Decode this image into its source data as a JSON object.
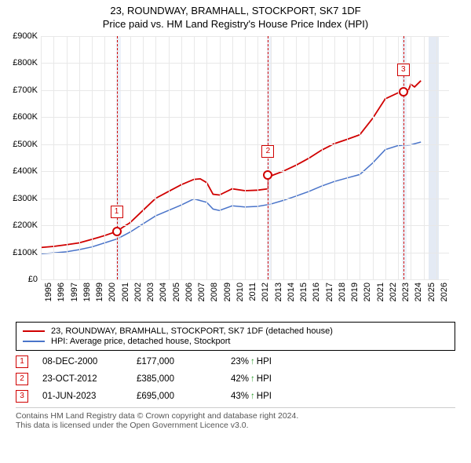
{
  "title": {
    "line1": "23, ROUNDWAY, BRAMHALL, STOCKPORT, SK7 1DF",
    "line2": "Price paid vs. HM Land Registry's House Price Index (HPI)"
  },
  "chart": {
    "xlim": [
      1995,
      2027
    ],
    "ylim": [
      0,
      900000
    ],
    "ytick_step": 100000,
    "y_ticks": [
      "£0",
      "£100K",
      "£200K",
      "£300K",
      "£400K",
      "£500K",
      "£600K",
      "£700K",
      "£800K",
      "£900K"
    ],
    "x_ticks": [
      1995,
      1996,
      1997,
      1998,
      1999,
      2000,
      2001,
      2002,
      2003,
      2004,
      2005,
      2006,
      2007,
      2008,
      2009,
      2010,
      2011,
      2012,
      2013,
      2014,
      2015,
      2016,
      2017,
      2018,
      2019,
      2020,
      2021,
      2022,
      2023,
      2024,
      2025,
      2026
    ],
    "colors": {
      "series_property": "#d00000",
      "series_hpi": "#4a74c9",
      "band_fill": "#dbe6f7",
      "band_fill_last": "#c9d6ea",
      "grid": "#e8e8e8",
      "background": "#ffffff"
    },
    "bands": [
      {
        "start": 2000.9,
        "end": 2001.3
      },
      {
        "start": 2012.7,
        "end": 2013.1
      },
      {
        "start": 2023.3,
        "end": 2023.7
      },
      {
        "start": 2025.4,
        "end": 2026.2
      }
    ],
    "series_hpi": [
      [
        1995,
        95000
      ],
      [
        1996,
        98000
      ],
      [
        1997,
        102000
      ],
      [
        1998,
        110000
      ],
      [
        1999,
        120000
      ],
      [
        2000,
        135000
      ],
      [
        2001,
        150000
      ],
      [
        2002,
        175000
      ],
      [
        2003,
        205000
      ],
      [
        2004,
        235000
      ],
      [
        2005,
        255000
      ],
      [
        2006,
        275000
      ],
      [
        2007,
        298000
      ],
      [
        2008,
        285000
      ],
      [
        2008.5,
        260000
      ],
      [
        2009,
        255000
      ],
      [
        2010,
        272000
      ],
      [
        2011,
        268000
      ],
      [
        2012,
        270000
      ],
      [
        2013,
        278000
      ],
      [
        2014,
        292000
      ],
      [
        2015,
        308000
      ],
      [
        2016,
        325000
      ],
      [
        2017,
        345000
      ],
      [
        2018,
        362000
      ],
      [
        2019,
        375000
      ],
      [
        2020,
        388000
      ],
      [
        2021,
        430000
      ],
      [
        2022,
        480000
      ],
      [
        2023,
        495000
      ],
      [
        2024,
        498000
      ],
      [
        2024.8,
        508000
      ]
    ],
    "series_property": [
      [
        1995,
        118000
      ],
      [
        1996,
        122000
      ],
      [
        1997,
        128000
      ],
      [
        1998,
        135000
      ],
      [
        1999,
        148000
      ],
      [
        2000,
        162000
      ],
      [
        2000.94,
        177000
      ],
      [
        2001,
        180000
      ],
      [
        2002,
        210000
      ],
      [
        2003,
        255000
      ],
      [
        2004,
        300000
      ],
      [
        2005,
        325000
      ],
      [
        2006,
        350000
      ],
      [
        2007,
        370000
      ],
      [
        2007.5,
        372000
      ],
      [
        2008,
        358000
      ],
      [
        2008.5,
        315000
      ],
      [
        2009,
        312000
      ],
      [
        2010,
        335000
      ],
      [
        2011,
        328000
      ],
      [
        2012,
        330000
      ],
      [
        2012.81,
        335000
      ],
      [
        2012.82,
        385000
      ],
      [
        2013,
        382000
      ],
      [
        2014,
        400000
      ],
      [
        2015,
        422000
      ],
      [
        2016,
        448000
      ],
      [
        2017,
        478000
      ],
      [
        2018,
        502000
      ],
      [
        2019,
        518000
      ],
      [
        2020,
        535000
      ],
      [
        2021,
        595000
      ],
      [
        2022,
        668000
      ],
      [
        2023,
        690000
      ],
      [
        2023.42,
        695000
      ],
      [
        2023.8,
        698000
      ],
      [
        2024,
        722000
      ],
      [
        2024.3,
        712000
      ],
      [
        2024.8,
        735000
      ]
    ],
    "event_markers": [
      {
        "n": "1",
        "x": 2000.94,
        "y": 177000,
        "box_y": 250000
      },
      {
        "n": "2",
        "x": 2012.81,
        "y": 385000,
        "box_y": 472000
      },
      {
        "n": "3",
        "x": 2023.42,
        "y": 695000,
        "box_y": 775000
      }
    ]
  },
  "legend": {
    "items": [
      {
        "color": "#d00000",
        "label": "23, ROUNDWAY, BRAMHALL, STOCKPORT, SK7 1DF (detached house)"
      },
      {
        "color": "#4a74c9",
        "label": "HPI: Average price, detached house, Stockport"
      }
    ]
  },
  "events": [
    {
      "n": "1",
      "date": "08-DEC-2000",
      "price": "£177,000",
      "pct": "23%",
      "arrow": "↑",
      "suffix": "HPI"
    },
    {
      "n": "2",
      "date": "23-OCT-2012",
      "price": "£385,000",
      "pct": "42%",
      "arrow": "↑",
      "suffix": "HPI"
    },
    {
      "n": "3",
      "date": "01-JUN-2023",
      "price": "£695,000",
      "pct": "43%",
      "arrow": "↑",
      "suffix": "HPI"
    }
  ],
  "footer": {
    "line1": "Contains HM Land Registry data © Crown copyright and database right 2024.",
    "line2": "This data is licensed under the Open Government Licence v3.0."
  }
}
